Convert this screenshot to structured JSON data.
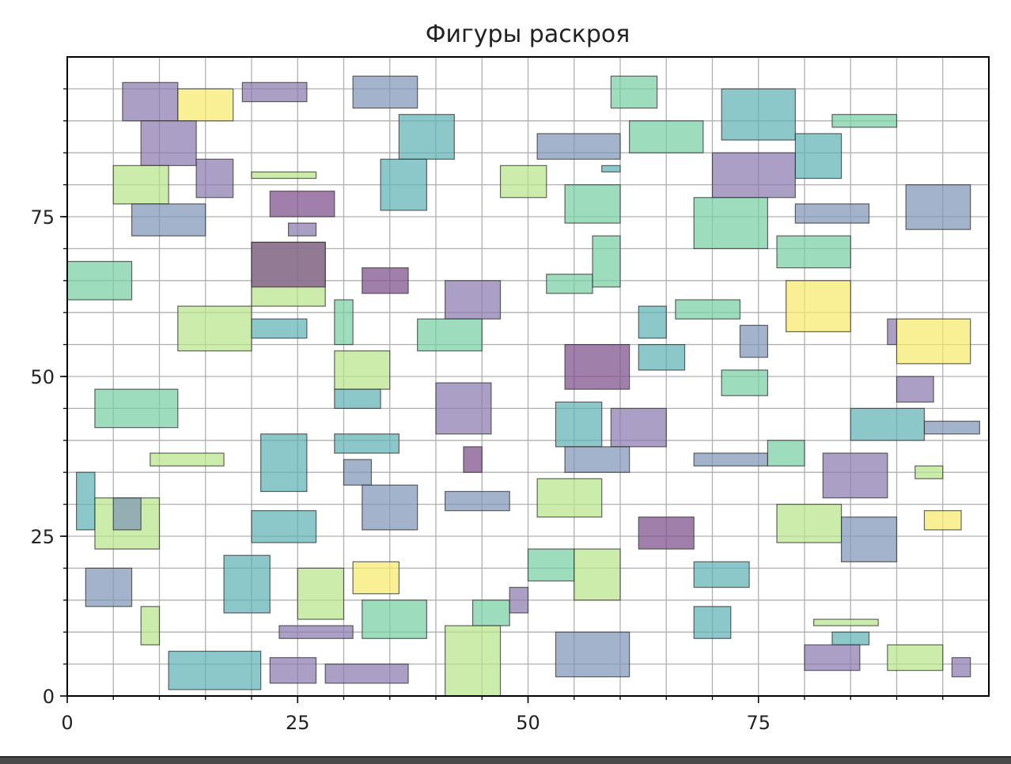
{
  "chart_data": {
    "type": "rectangles",
    "title": "Фигуры раскроя",
    "xlabel": "",
    "ylabel": "",
    "xlim": [
      0,
      100
    ],
    "ylim": [
      0,
      100
    ],
    "xticks": [
      0,
      25,
      50,
      75
    ],
    "yticks": [
      0,
      25,
      50,
      75
    ],
    "grid": true,
    "colors": {
      "dark_purple": "#7b4e8a",
      "purple": "#8a7ab0",
      "slate": "#7f96b7",
      "teal": "#5fb3b6",
      "green": "#77d0a5",
      "light_green": "#b9e58c",
      "yellow": "#f6e96b"
    },
    "rects": [
      {
        "x": 6,
        "y": 90,
        "w": 6,
        "h": 6,
        "c": "purple"
      },
      {
        "x": 12,
        "y": 90,
        "w": 6,
        "h": 5,
        "c": "yellow"
      },
      {
        "x": 19,
        "y": 93,
        "w": 7,
        "h": 3,
        "c": "purple"
      },
      {
        "x": 31,
        "y": 92,
        "w": 7,
        "h": 5,
        "c": "slate"
      },
      {
        "x": 59,
        "y": 92,
        "w": 5,
        "h": 5,
        "c": "green"
      },
      {
        "x": 71,
        "y": 87,
        "w": 8,
        "h": 8,
        "c": "teal"
      },
      {
        "x": 83,
        "y": 89,
        "w": 7,
        "h": 2,
        "c": "green"
      },
      {
        "x": 8,
        "y": 83,
        "w": 6,
        "h": 7,
        "c": "purple"
      },
      {
        "x": 36,
        "y": 84,
        "w": 6,
        "h": 7,
        "c": "teal"
      },
      {
        "x": 51,
        "y": 84,
        "w": 9,
        "h": 4,
        "c": "slate"
      },
      {
        "x": 61,
        "y": 85,
        "w": 8,
        "h": 5,
        "c": "green"
      },
      {
        "x": 79,
        "y": 81,
        "w": 5,
        "h": 7,
        "c": "teal"
      },
      {
        "x": 5,
        "y": 77,
        "w": 6,
        "h": 6,
        "c": "light_green"
      },
      {
        "x": 14,
        "y": 78,
        "w": 4,
        "h": 6,
        "c": "purple"
      },
      {
        "x": 20,
        "y": 81,
        "w": 7,
        "h": 1,
        "c": "light_green"
      },
      {
        "x": 34,
        "y": 76,
        "w": 5,
        "h": 8,
        "c": "teal"
      },
      {
        "x": 47,
        "y": 78,
        "w": 5,
        "h": 5,
        "c": "light_green"
      },
      {
        "x": 58,
        "y": 82,
        "w": 2,
        "h": 1,
        "c": "teal"
      },
      {
        "x": 70,
        "y": 78,
        "w": 9,
        "h": 7,
        "c": "purple"
      },
      {
        "x": 7,
        "y": 72,
        "w": 8,
        "h": 5,
        "c": "slate"
      },
      {
        "x": 22,
        "y": 75,
        "w": 7,
        "h": 4,
        "c": "dark_purple"
      },
      {
        "x": 24,
        "y": 72,
        "w": 3,
        "h": 2,
        "c": "purple"
      },
      {
        "x": 54,
        "y": 74,
        "w": 6,
        "h": 6,
        "c": "green"
      },
      {
        "x": 68,
        "y": 70,
        "w": 8,
        "h": 8,
        "c": "green"
      },
      {
        "x": 79,
        "y": 74,
        "w": 8,
        "h": 3,
        "c": "slate"
      },
      {
        "x": 91,
        "y": 73,
        "w": 7,
        "h": 7,
        "c": "slate"
      },
      {
        "x": 0,
        "y": 62,
        "w": 7,
        "h": 6,
        "c": "green"
      },
      {
        "x": 20,
        "y": 61,
        "w": 8,
        "h": 10,
        "c": "light_green"
      },
      {
        "x": 20,
        "y": 64,
        "w": 8,
        "h": 7,
        "c": "dark_purple"
      },
      {
        "x": 32,
        "y": 63,
        "w": 5,
        "h": 4,
        "c": "dark_purple"
      },
      {
        "x": 52,
        "y": 63,
        "w": 5,
        "h": 3,
        "c": "green"
      },
      {
        "x": 57,
        "y": 64,
        "w": 3,
        "h": 8,
        "c": "green"
      },
      {
        "x": 77,
        "y": 67,
        "w": 8,
        "h": 5,
        "c": "green"
      },
      {
        "x": 41,
        "y": 59,
        "w": 6,
        "h": 6,
        "c": "purple"
      },
      {
        "x": 12,
        "y": 54,
        "w": 8,
        "h": 7,
        "c": "light_green"
      },
      {
        "x": 20,
        "y": 56,
        "w": 6,
        "h": 3,
        "c": "teal"
      },
      {
        "x": 29,
        "y": 55,
        "w": 2,
        "h": 7,
        "c": "green"
      },
      {
        "x": 38,
        "y": 54,
        "w": 7,
        "h": 5,
        "c": "green"
      },
      {
        "x": 62,
        "y": 56,
        "w": 3,
        "h": 5,
        "c": "teal"
      },
      {
        "x": 66,
        "y": 59,
        "w": 7,
        "h": 3,
        "c": "green"
      },
      {
        "x": 78,
        "y": 57,
        "w": 7,
        "h": 8,
        "c": "yellow"
      },
      {
        "x": 89,
        "y": 55,
        "w": 1,
        "h": 4,
        "c": "purple"
      },
      {
        "x": 90,
        "y": 52,
        "w": 8,
        "h": 7,
        "c": "yellow"
      },
      {
        "x": 29,
        "y": 48,
        "w": 6,
        "h": 6,
        "c": "light_green"
      },
      {
        "x": 54,
        "y": 48,
        "w": 7,
        "h": 7,
        "c": "dark_purple"
      },
      {
        "x": 62,
        "y": 51,
        "w": 5,
        "h": 4,
        "c": "teal"
      },
      {
        "x": 73,
        "y": 53,
        "w": 3,
        "h": 5,
        "c": "slate"
      },
      {
        "x": 71,
        "y": 47,
        "w": 5,
        "h": 4,
        "c": "green"
      },
      {
        "x": 3,
        "y": 42,
        "w": 9,
        "h": 6,
        "c": "green"
      },
      {
        "x": 29,
        "y": 45,
        "w": 5,
        "h": 3,
        "c": "teal"
      },
      {
        "x": 40,
        "y": 41,
        "w": 6,
        "h": 8,
        "c": "purple"
      },
      {
        "x": 53,
        "y": 39,
        "w": 5,
        "h": 7,
        "c": "teal"
      },
      {
        "x": 59,
        "y": 39,
        "w": 6,
        "h": 6,
        "c": "purple"
      },
      {
        "x": 90,
        "y": 46,
        "w": 4,
        "h": 4,
        "c": "purple"
      },
      {
        "x": 85,
        "y": 40,
        "w": 8,
        "h": 5,
        "c": "teal"
      },
      {
        "x": 93,
        "y": 41,
        "w": 6,
        "h": 2,
        "c": "slate"
      },
      {
        "x": 9,
        "y": 36,
        "w": 8,
        "h": 2,
        "c": "light_green"
      },
      {
        "x": 21,
        "y": 32,
        "w": 5,
        "h": 9,
        "c": "teal"
      },
      {
        "x": 29,
        "y": 38,
        "w": 7,
        "h": 3,
        "c": "teal"
      },
      {
        "x": 43,
        "y": 35,
        "w": 2,
        "h": 4,
        "c": "dark_purple"
      },
      {
        "x": 54,
        "y": 35,
        "w": 7,
        "h": 4,
        "c": "slate"
      },
      {
        "x": 68,
        "y": 36,
        "w": 8,
        "h": 2,
        "c": "slate"
      },
      {
        "x": 76,
        "y": 36,
        "w": 4,
        "h": 4,
        "c": "green"
      },
      {
        "x": 82,
        "y": 31,
        "w": 7,
        "h": 7,
        "c": "purple"
      },
      {
        "x": 92,
        "y": 34,
        "w": 3,
        "h": 2,
        "c": "light_green"
      },
      {
        "x": 1,
        "y": 26,
        "w": 2,
        "h": 9,
        "c": "teal"
      },
      {
        "x": 3,
        "y": 23,
        "w": 7,
        "h": 8,
        "c": "light_green"
      },
      {
        "x": 5,
        "y": 26,
        "w": 3,
        "h": 5,
        "c": "slate"
      },
      {
        "x": 30,
        "y": 33,
        "w": 3,
        "h": 4,
        "c": "slate"
      },
      {
        "x": 32,
        "y": 26,
        "w": 6,
        "h": 7,
        "c": "slate"
      },
      {
        "x": 41,
        "y": 29,
        "w": 7,
        "h": 3,
        "c": "slate"
      },
      {
        "x": 51,
        "y": 28,
        "w": 7,
        "h": 6,
        "c": "light_green"
      },
      {
        "x": 20,
        "y": 24,
        "w": 7,
        "h": 5,
        "c": "teal"
      },
      {
        "x": 62,
        "y": 23,
        "w": 6,
        "h": 5,
        "c": "dark_purple"
      },
      {
        "x": 77,
        "y": 24,
        "w": 7,
        "h": 6,
        "c": "light_green"
      },
      {
        "x": 84,
        "y": 21,
        "w": 6,
        "h": 7,
        "c": "slate"
      },
      {
        "x": 93,
        "y": 26,
        "w": 4,
        "h": 3,
        "c": "yellow"
      },
      {
        "x": 2,
        "y": 14,
        "w": 5,
        "h": 6,
        "c": "slate"
      },
      {
        "x": 17,
        "y": 13,
        "w": 5,
        "h": 9,
        "c": "teal"
      },
      {
        "x": 25,
        "y": 12,
        "w": 5,
        "h": 8,
        "c": "light_green"
      },
      {
        "x": 31,
        "y": 16,
        "w": 5,
        "h": 5,
        "c": "yellow"
      },
      {
        "x": 50,
        "y": 18,
        "w": 5,
        "h": 5,
        "c": "green"
      },
      {
        "x": 55,
        "y": 15,
        "w": 5,
        "h": 8,
        "c": "light_green"
      },
      {
        "x": 68,
        "y": 17,
        "w": 6,
        "h": 4,
        "c": "teal"
      },
      {
        "x": 8,
        "y": 8,
        "w": 2,
        "h": 6,
        "c": "light_green"
      },
      {
        "x": 23,
        "y": 9,
        "w": 8,
        "h": 2,
        "c": "purple"
      },
      {
        "x": 32,
        "y": 9,
        "w": 7,
        "h": 6,
        "c": "green"
      },
      {
        "x": 44,
        "y": 11,
        "w": 4,
        "h": 4,
        "c": "green"
      },
      {
        "x": 48,
        "y": 13,
        "w": 2,
        "h": 4,
        "c": "purple"
      },
      {
        "x": 68,
        "y": 9,
        "w": 4,
        "h": 5,
        "c": "teal"
      },
      {
        "x": 81,
        "y": 11,
        "w": 7,
        "h": 1,
        "c": "light_green"
      },
      {
        "x": 83,
        "y": 8,
        "w": 4,
        "h": 2,
        "c": "teal"
      },
      {
        "x": 11,
        "y": 1,
        "w": 10,
        "h": 6,
        "c": "teal"
      },
      {
        "x": 22,
        "y": 2,
        "w": 5,
        "h": 4,
        "c": "purple"
      },
      {
        "x": 28,
        "y": 2,
        "w": 9,
        "h": 3,
        "c": "purple"
      },
      {
        "x": 41,
        "y": 0,
        "w": 6,
        "h": 11,
        "c": "light_green"
      },
      {
        "x": 53,
        "y": 3,
        "w": 8,
        "h": 7,
        "c": "slate"
      },
      {
        "x": 80,
        "y": 4,
        "w": 6,
        "h": 4,
        "c": "purple"
      },
      {
        "x": 89,
        "y": 4,
        "w": 6,
        "h": 4,
        "c": "light_green"
      },
      {
        "x": 96,
        "y": 3,
        "w": 2,
        "h": 3,
        "c": "purple"
      }
    ]
  }
}
